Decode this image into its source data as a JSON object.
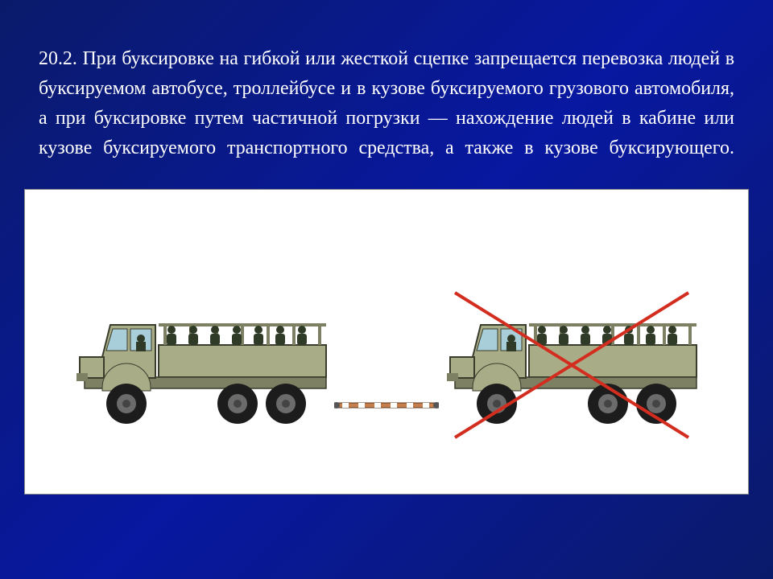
{
  "rule": {
    "number": "20.2.",
    "text": "При буксировке на гибкой или жесткой сцепке запрещается перевозка людей в буксируемом автобусе, троллейбусе и в кузове буксируемого грузового автомобиля, а при буксировке путем частичной погрузки — нахождение людей в кабине или кузове буксируемого транспортного средства, а также в кузове буксирующего.",
    "font_size_pt": 18,
    "color": "#ffffff"
  },
  "illustration": {
    "background": "#ffffff",
    "truck_body_color": "#a9ad87",
    "truck_body_dark": "#7d8062",
    "truck_outline": "#3a3c2c",
    "tire_color": "#1c1c1c",
    "hub_color": "#6b6b6b",
    "glass_color": "#a8cfd9",
    "soldier_color": "#2f3b27",
    "towbar_fill": "#c47f4d",
    "towbar_stripe": "#ffffff",
    "cross_color": "#d22d1f",
    "left_truck": {
      "show_cross": false
    },
    "right_truck": {
      "show_cross": true
    }
  }
}
